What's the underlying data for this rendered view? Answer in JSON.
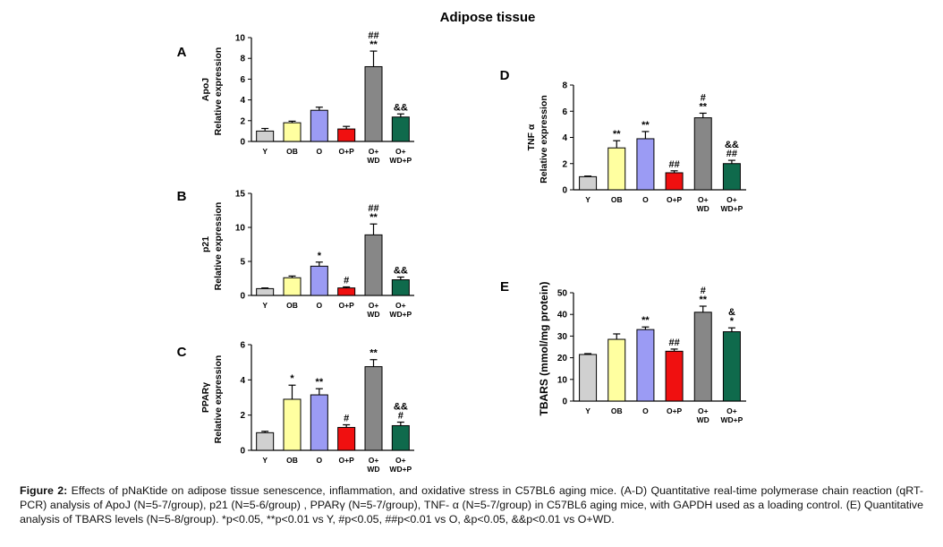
{
  "figure": {
    "title": "Adipose tissue",
    "caption_label": "Figure 2:",
    "caption_text": "  Effects of pNaKtide on adipose tissue senescence, inflammation, and oxidative stress in C57BL6 aging mice. (A-D) Quantitative real-time polymerase chain reaction (qRT-PCR) analysis of ApoJ (N=5-7/group), p21 (N=5-6/group) , PPARγ (N=5-7/group), TNF- α (N=5-7/group) in C57BL6 aging mice, with GAPDH used as a loading control. (E) Quantitative analysis of TBARS levels (N=5-8/group). *p<0.05, **p<0.01 vs Y, #p<0.05, ##p<0.01 vs O, &p<0.05, &&p<0.01 vs O+WD."
  },
  "colors": {
    "Y": "#d0d0d0",
    "OB": "#ffffa0",
    "O": "#9b9bf4",
    "O+P": "#f01010",
    "O+WD": "#878787",
    "WD+P": "#0f6a4c"
  },
  "chart_data": [
    {
      "panel": "A",
      "type": "bar",
      "ylabel_top": "ApoJ",
      "ylabel_bottom": "Relative expression",
      "ylim": [
        0,
        10
      ],
      "yticks": [
        "0",
        "2",
        "4",
        "6",
        "8",
        "10"
      ],
      "categories": [
        [
          "Y"
        ],
        [
          "OB"
        ],
        [
          "O"
        ],
        [
          "O+P"
        ],
        [
          "O+",
          "WD"
        ],
        [
          "O+",
          "WD+P"
        ]
      ],
      "values": [
        1.0,
        1.8,
        3.0,
        1.2,
        7.2,
        2.35
      ],
      "errors": [
        0.25,
        0.15,
        0.3,
        0.25,
        1.5,
        0.3
      ],
      "annotations": [
        [],
        [],
        [],
        [],
        [
          "##",
          "**"
        ],
        [
          "&&"
        ]
      ]
    },
    {
      "panel": "B",
      "type": "bar",
      "ylabel_top": "p21",
      "ylabel_bottom": "Relative expression",
      "ylim": [
        0,
        15
      ],
      "yticks": [
        "0",
        "5",
        "10",
        "15"
      ],
      "categories": [
        [
          "Y"
        ],
        [
          "OB"
        ],
        [
          "O"
        ],
        [
          "O+P"
        ],
        [
          "O+",
          "WD"
        ],
        [
          "O+",
          "WD+P"
        ]
      ],
      "values": [
        1.0,
        2.6,
        4.3,
        1.1,
        8.9,
        2.3
      ],
      "errors": [
        0.1,
        0.25,
        0.6,
        0.15,
        1.6,
        0.4
      ],
      "annotations": [
        [],
        [],
        [
          "*"
        ],
        [
          "#"
        ],
        [
          "##",
          "**"
        ],
        [
          "&&"
        ]
      ]
    },
    {
      "panel": "C",
      "type": "bar",
      "ylabel_top": "PPARγ",
      "ylabel_bottom": "Relative expression",
      "ylim": [
        0,
        6
      ],
      "yticks": [
        "0",
        "2",
        "4",
        "6"
      ],
      "categories": [
        [
          "Y"
        ],
        [
          "OB"
        ],
        [
          "O"
        ],
        [
          "O+P"
        ],
        [
          "O+",
          "WD"
        ],
        [
          "O+",
          "WD+P"
        ]
      ],
      "values": [
        1.0,
        2.9,
        3.15,
        1.3,
        4.75,
        1.4
      ],
      "errors": [
        0.08,
        0.8,
        0.35,
        0.15,
        0.4,
        0.2
      ],
      "annotations": [
        [],
        [
          "*"
        ],
        [
          "**"
        ],
        [
          "#"
        ],
        [
          "**"
        ],
        [
          "&&",
          "#"
        ]
      ]
    },
    {
      "panel": "D",
      "type": "bar",
      "ylabel_top": "TNF α",
      "ylabel_bottom": "Relative expression",
      "ylim": [
        0,
        8
      ],
      "yticks": [
        "0",
        "2",
        "4",
        "6",
        "8"
      ],
      "categories": [
        [
          "Y"
        ],
        [
          "OB"
        ],
        [
          "O"
        ],
        [
          "O+P"
        ],
        [
          "O+",
          "WD"
        ],
        [
          "O+",
          "WD+P"
        ]
      ],
      "values": [
        1.0,
        3.2,
        3.9,
        1.3,
        5.5,
        2.0
      ],
      "errors": [
        0.05,
        0.55,
        0.55,
        0.15,
        0.35,
        0.25
      ],
      "annotations": [
        [],
        [
          "**"
        ],
        [
          "**"
        ],
        [
          "##"
        ],
        [
          "#",
          "**"
        ],
        [
          "&&",
          "##"
        ]
      ]
    },
    {
      "panel": "E",
      "type": "bar",
      "ylabel_top": "",
      "ylabel_bottom": "TBARS (mmol/mg protein)",
      "ylim": [
        0,
        50
      ],
      "yticks": [
        "0",
        "10",
        "20",
        "30",
        "40",
        "50"
      ],
      "categories": [
        [
          "Y"
        ],
        [
          "OB"
        ],
        [
          "O"
        ],
        [
          "O+P"
        ],
        [
          "O+",
          "WD"
        ],
        [
          "O+",
          "WD+P"
        ]
      ],
      "values": [
        21.5,
        28.5,
        33.0,
        23.0,
        41.0,
        32.0
      ],
      "errors": [
        0.4,
        2.5,
        1.2,
        1.0,
        2.8,
        1.8
      ],
      "annotations": [
        [],
        [],
        [
          "**"
        ],
        [
          "##"
        ],
        [
          "#",
          "**"
        ],
        [
          "&",
          "*"
        ]
      ]
    }
  ]
}
